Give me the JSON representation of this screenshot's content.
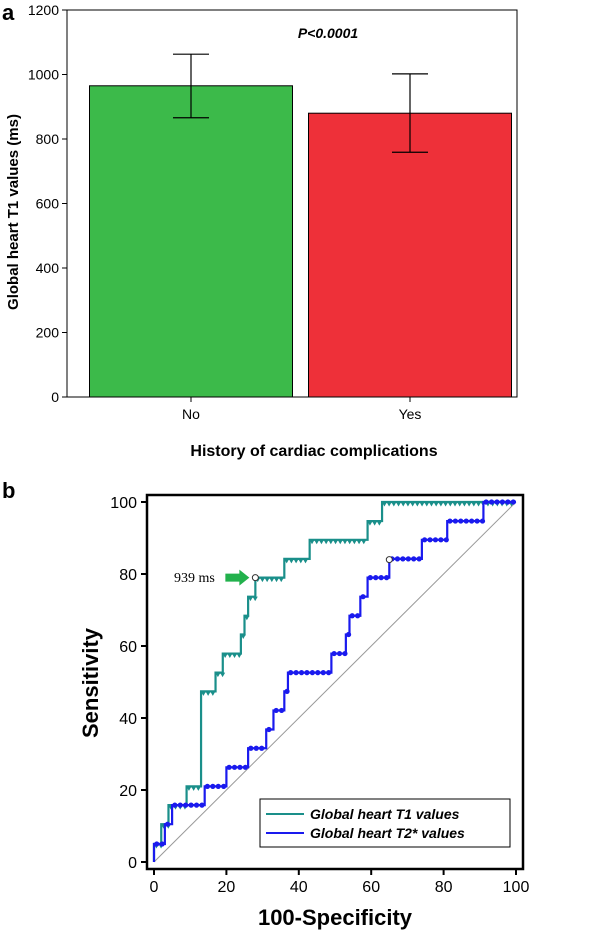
{
  "panels": {
    "a": {
      "letter": "a"
    },
    "b": {
      "letter": "b"
    }
  },
  "chart_data": [
    {
      "type": "bar",
      "panel": "a",
      "categories": [
        "No",
        "Yes"
      ],
      "values": [
        965,
        880
      ],
      "error_upper": [
        1063,
        1002
      ],
      "error_lower": [
        866,
        759
      ],
      "colors": [
        "#3cba4a",
        "#ee3039"
      ],
      "annotation": "P<0.0001",
      "xlabel": "History of cardiac complications",
      "ylabel": "Global heart T1 values (ms)",
      "ylim": [
        0,
        1200
      ],
      "yticks": [
        0,
        200,
        400,
        600,
        800,
        1000,
        1200
      ],
      "grid": false
    },
    {
      "type": "line",
      "panel": "b",
      "xlabel": "100-Specificity",
      "ylabel": "Sensitivity",
      "xlim": [
        0,
        100
      ],
      "ylim": [
        0,
        100
      ],
      "xticks": [
        0,
        20,
        40,
        60,
        80,
        100
      ],
      "yticks": [
        0,
        20,
        40,
        60,
        80,
        100
      ],
      "legend_position": "bottom-right",
      "annotation": {
        "label": "939 ms",
        "x": 28,
        "y": 79
      },
      "reference_line": [
        [
          0,
          0
        ],
        [
          100,
          100
        ]
      ],
      "series": [
        {
          "name": "Global heart T1 values",
          "color": "#1a8f8a",
          "points": [
            [
              0,
              0
            ],
            [
              0,
              5
            ],
            [
              2,
              5
            ],
            [
              2,
              10.5
            ],
            [
              4,
              10.5
            ],
            [
              4,
              15.8
            ],
            [
              9,
              15.8
            ],
            [
              9,
              21
            ],
            [
              13,
              21
            ],
            [
              13,
              47.4
            ],
            [
              17,
              47.4
            ],
            [
              17,
              52.6
            ],
            [
              19,
              52.6
            ],
            [
              19,
              57.9
            ],
            [
              24,
              57.9
            ],
            [
              24,
              63.2
            ],
            [
              25,
              63.2
            ],
            [
              25,
              68.4
            ],
            [
              26,
              68.4
            ],
            [
              26,
              73.7
            ],
            [
              28,
              73.7
            ],
            [
              28,
              79
            ],
            [
              36,
              79
            ],
            [
              36,
              84.2
            ],
            [
              43,
              84.2
            ],
            [
              43,
              89.5
            ],
            [
              59,
              89.5
            ],
            [
              59,
              94.7
            ],
            [
              63,
              94.7
            ],
            [
              63,
              100
            ],
            [
              100,
              100
            ]
          ],
          "cut_point": [
            28,
            79
          ]
        },
        {
          "name": "Global heart T2* values",
          "color": "#1a1aee",
          "points": [
            [
              0,
              0
            ],
            [
              0,
              5
            ],
            [
              3,
              5
            ],
            [
              3,
              10.5
            ],
            [
              5,
              10.5
            ],
            [
              5,
              15.8
            ],
            [
              14,
              15.8
            ],
            [
              14,
              21
            ],
            [
              20,
              21
            ],
            [
              20,
              26.3
            ],
            [
              26,
              26.3
            ],
            [
              26,
              31.6
            ],
            [
              31,
              31.6
            ],
            [
              31,
              36.8
            ],
            [
              33,
              36.8
            ],
            [
              33,
              42.1
            ],
            [
              36,
              42.1
            ],
            [
              36,
              47.4
            ],
            [
              37,
              47.4
            ],
            [
              37,
              52.6
            ],
            [
              49,
              52.6
            ],
            [
              49,
              57.9
            ],
            [
              53,
              57.9
            ],
            [
              53,
              63.2
            ],
            [
              54,
              63.2
            ],
            [
              54,
              68.4
            ],
            [
              57,
              68.4
            ],
            [
              57,
              73.7
            ],
            [
              59,
              73.7
            ],
            [
              59,
              79
            ],
            [
              65,
              79
            ],
            [
              65,
              84.2
            ],
            [
              74,
              84.2
            ],
            [
              74,
              89.5
            ],
            [
              81,
              89.5
            ],
            [
              81,
              94.7
            ],
            [
              91,
              94.7
            ],
            [
              91,
              100
            ],
            [
              100,
              100
            ]
          ],
          "cut_point": [
            65,
            84
          ]
        }
      ]
    }
  ]
}
